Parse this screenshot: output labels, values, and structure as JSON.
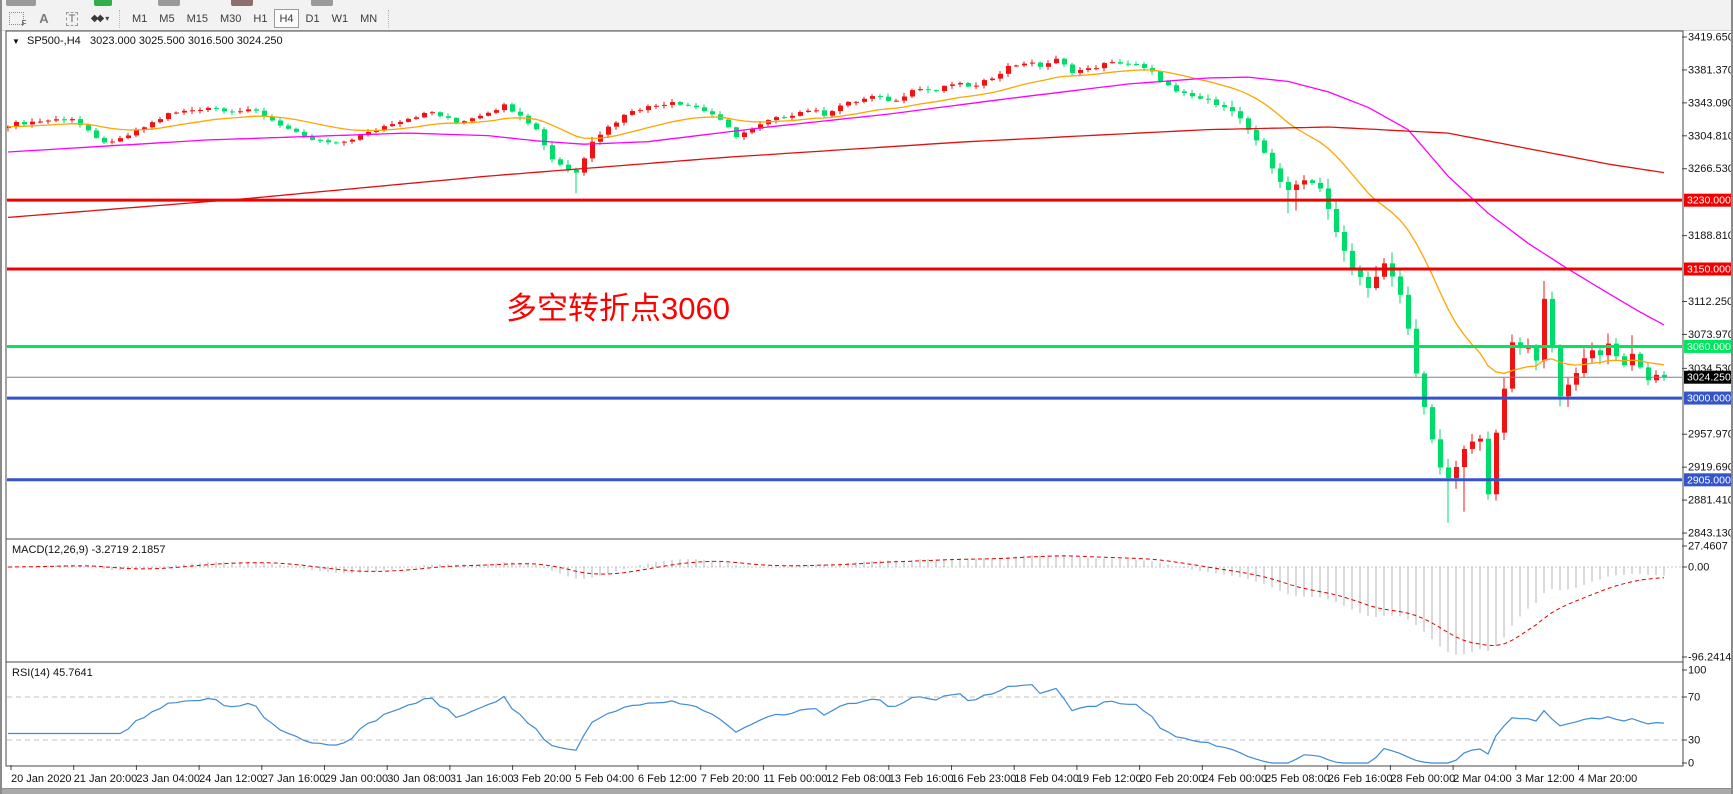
{
  "toolbar": {
    "tools": [
      {
        "name": "fibonacci-grid-icon",
        "glyph": "F"
      },
      {
        "name": "label-a-icon",
        "glyph": "A"
      },
      {
        "name": "text-t-icon",
        "glyph": "T"
      },
      {
        "name": "shapes-arrows-icon",
        "glyph": "◆◆",
        "caret": "▾"
      }
    ],
    "timeframes": [
      "M1",
      "M5",
      "M15",
      "M30",
      "H1",
      "H4",
      "D1",
      "W1",
      "MN"
    ],
    "active_timeframe": "H4"
  },
  "chart": {
    "collapse_icon": "▼",
    "symbol_line": "SP500-,H4",
    "ohlc_line": "3023.000 3025.500 3016.500 3024.250",
    "current": {
      "open": 3023.0,
      "high": 3025.5,
      "low": 3016.5,
      "close": 3024.25
    }
  },
  "annotation": {
    "text": "多空转折点3060",
    "color": "#FF0000"
  },
  "price_axis": {
    "ticks": [
      "3419.650",
      "3381.370",
      "3343.090",
      "3304.810",
      "3266.530",
      "3188.810",
      "3112.250",
      "3073.970",
      "3034.530",
      "2957.970",
      "2919.690",
      "2881.410",
      "2843.130"
    ]
  },
  "time_axis": {
    "labels": [
      "20 Jan 2020",
      "21 Jan 20:00",
      "23 Jan 04:00",
      "24 Jan 12:00",
      "27 Jan 16:00",
      "29 Jan 00:00",
      "30 Jan 08:00",
      "31 Jan 16:00",
      "3 Feb 20:00",
      "5 Feb 04:00",
      "6 Feb 12:00",
      "7 Feb 20:00",
      "11 Feb 00:00",
      "12 Feb 08:00",
      "13 Feb 16:00",
      "16 Feb 23:00",
      "18 Feb 04:00",
      "19 Feb 12:00",
      "20 Feb 20:00",
      "24 Feb 00:00",
      "25 Feb 08:00",
      "26 Feb 16:00",
      "28 Feb 00:00",
      "2 Mar 04:00",
      "3 Mar 12:00",
      "4 Mar 20:00"
    ]
  },
  "indicators": {
    "macd": {
      "label": "MACD(12,26,9) -3.2719 2.1857",
      "fast": 12,
      "slow": 26,
      "smooth": 9,
      "scale_top": "27.4607",
      "scale_zero": "0.00",
      "scale_bottom": "-96.2414",
      "histogram_color": "#b4b4b4",
      "signal_color": "#e00000"
    },
    "rsi": {
      "label": "RSI(14) 45.7641",
      "period": 14,
      "value": 45.7641,
      "scale": [
        "100",
        "70",
        "30",
        "0"
      ],
      "line_color": "#3e8bd6",
      "level_color": "#c0c0c0"
    }
  },
  "chart_data": {
    "type": "candlestick",
    "symbol": "SP500-",
    "timeframe": "H4",
    "title": "SP500-,H4 3023.000 3025.500 3016.500 3024.250",
    "bars": 208,
    "price_range": [
      2843.13,
      3419.65
    ],
    "up_color": "#ef1414",
    "down_color": "#00dc6a",
    "price_waypoints": [
      [
        0,
        3318
      ],
      [
        4,
        3322
      ],
      [
        8,
        3325
      ],
      [
        11,
        3301
      ],
      [
        13,
        3296
      ],
      [
        17,
        3315
      ],
      [
        20,
        3330
      ],
      [
        25,
        3338
      ],
      [
        28,
        3334
      ],
      [
        31,
        3333
      ],
      [
        34,
        3318
      ],
      [
        37,
        3302
      ],
      [
        41,
        3295
      ],
      [
        45,
        3308
      ],
      [
        48,
        3320
      ],
      [
        51,
        3328
      ],
      [
        53,
        3332
      ],
      [
        56,
        3320
      ],
      [
        58,
        3326
      ],
      [
        62,
        3340
      ],
      [
        64,
        3330
      ],
      [
        66,
        3312
      ],
      [
        68,
        3278
      ],
      [
        70,
        3266
      ],
      [
        71,
        3262
      ],
      [
        72,
        3280
      ],
      [
        73,
        3300
      ],
      [
        75,
        3315
      ],
      [
        78,
        3335
      ],
      [
        81,
        3340
      ],
      [
        83,
        3345
      ],
      [
        86,
        3338
      ],
      [
        88,
        3330
      ],
      [
        91,
        3305
      ],
      [
        93,
        3312
      ],
      [
        95,
        3322
      ],
      [
        98,
        3330
      ],
      [
        100,
        3335
      ],
      [
        102,
        3330
      ],
      [
        104,
        3340
      ],
      [
        106,
        3345
      ],
      [
        108,
        3350
      ],
      [
        111,
        3345
      ],
      [
        113,
        3360
      ],
      [
        116,
        3357
      ],
      [
        118,
        3365
      ],
      [
        121,
        3362
      ],
      [
        123,
        3373
      ],
      [
        125,
        3385
      ],
      [
        127,
        3390
      ],
      [
        129,
        3386
      ],
      [
        131,
        3393
      ],
      [
        133,
        3380
      ],
      [
        135,
        3382
      ],
      [
        137,
        3388
      ],
      [
        139,
        3390
      ],
      [
        141,
        3387
      ],
      [
        143,
        3378
      ],
      [
        146,
        3355
      ],
      [
        149,
        3348
      ],
      [
        152,
        3340
      ],
      [
        154,
        3325
      ],
      [
        155,
        3310
      ],
      [
        157,
        3285
      ],
      [
        158,
        3268
      ],
      [
        159,
        3252
      ],
      [
        160,
        3240
      ],
      [
        161,
        3248
      ],
      [
        162,
        3255
      ],
      [
        164,
        3245
      ],
      [
        165,
        3220
      ],
      [
        166,
        3192
      ],
      [
        167,
        3170
      ],
      [
        168,
        3150
      ],
      [
        169,
        3140
      ],
      [
        170,
        3130
      ],
      [
        171,
        3140
      ],
      [
        172,
        3155
      ],
      [
        173,
        3140
      ],
      [
        174,
        3120
      ],
      [
        175,
        3080
      ],
      [
        176,
        3030
      ],
      [
        177,
        2990
      ],
      [
        178,
        2950
      ],
      [
        179,
        2920
      ],
      [
        180,
        2905
      ],
      [
        181,
        2920
      ],
      [
        182,
        2940
      ],
      [
        183,
        2948
      ],
      [
        184,
        2955
      ],
      [
        185,
        2890
      ],
      [
        186,
        2958
      ],
      [
        187,
        3010
      ],
      [
        188,
        3065
      ],
      [
        189,
        3060
      ],
      [
        190,
        3058
      ],
      [
        191,
        3045
      ],
      [
        192,
        3115
      ],
      [
        193,
        3060
      ],
      [
        194,
        3000
      ],
      [
        195,
        3015
      ],
      [
        196,
        3030
      ],
      [
        197,
        3045
      ],
      [
        198,
        3057
      ],
      [
        199,
        3050
      ],
      [
        200,
        3063
      ],
      [
        201,
        3050
      ],
      [
        202,
        3038
      ],
      [
        203,
        3052
      ],
      [
        204,
        3034
      ],
      [
        205,
        3020
      ],
      [
        206,
        3028
      ],
      [
        207,
        3024.25
      ]
    ],
    "wick_overrides": [
      {
        "i": 71,
        "low": 3238
      },
      {
        "i": 131,
        "high": 3398
      },
      {
        "i": 160,
        "low": 3215
      },
      {
        "i": 161,
        "low": 3218
      },
      {
        "i": 180,
        "low": 2855
      },
      {
        "i": 182,
        "low": 2868
      },
      {
        "i": 185,
        "low": 2882
      },
      {
        "i": 192,
        "high": 3136
      },
      {
        "i": 203,
        "high": 3073
      }
    ],
    "moving_averages": [
      {
        "name": "ma-fast",
        "type": "ema",
        "period": 21,
        "seed": 3315,
        "color": "#ffa500"
      },
      {
        "name": "ma-mid",
        "type": "path",
        "color": "#ff00ff",
        "waypoints": [
          [
            0,
            3286
          ],
          [
            25,
            3300
          ],
          [
            50,
            3308
          ],
          [
            60,
            3305
          ],
          [
            66,
            3299
          ],
          [
            72,
            3295
          ],
          [
            80,
            3298
          ],
          [
            95,
            3315
          ],
          [
            110,
            3330
          ],
          [
            125,
            3348
          ],
          [
            140,
            3365
          ],
          [
            150,
            3372
          ],
          [
            155,
            3373
          ],
          [
            160,
            3368
          ],
          [
            165,
            3356
          ],
          [
            170,
            3338
          ],
          [
            175,
            3312
          ],
          [
            180,
            3258
          ],
          [
            185,
            3215
          ],
          [
            190,
            3180
          ],
          [
            195,
            3150
          ],
          [
            200,
            3122
          ],
          [
            204,
            3100
          ],
          [
            207,
            3085
          ]
        ]
      },
      {
        "name": "ma-slow",
        "type": "path",
        "color": "#e01010",
        "waypoints": [
          [
            0,
            3210
          ],
          [
            30,
            3232
          ],
          [
            60,
            3258
          ],
          [
            90,
            3280
          ],
          [
            120,
            3298
          ],
          [
            150,
            3312
          ],
          [
            165,
            3315
          ],
          [
            180,
            3308
          ],
          [
            190,
            3290
          ],
          [
            200,
            3272
          ],
          [
            207,
            3262
          ]
        ]
      }
    ],
    "hlines": [
      {
        "price": 3230.0,
        "label": "3230.000",
        "color": "#f20000",
        "width": 3,
        "label_text_color": "#ffffff"
      },
      {
        "price": 3150.0,
        "label": "3150.000",
        "color": "#f20000",
        "width": 3,
        "label_text_color": "#ffffff"
      },
      {
        "price": 3060.0,
        "label": "3060.000",
        "color": "#00e65f",
        "width": 3,
        "label_text_color": "#ffffff"
      },
      {
        "price": 3024.25,
        "label": "3024.250",
        "color": "#808080",
        "width": 1,
        "label_bg": "#000000",
        "label_text_color": "#ffffff"
      },
      {
        "price": 3000.0,
        "label": "3000.000",
        "color": "#3354cb",
        "width": 3,
        "label_text_color": "#ffffff"
      },
      {
        "price": 2905.0,
        "label": "2905.000",
        "color": "#3354cb",
        "width": 3,
        "label_text_color": "#ffffff"
      }
    ]
  }
}
